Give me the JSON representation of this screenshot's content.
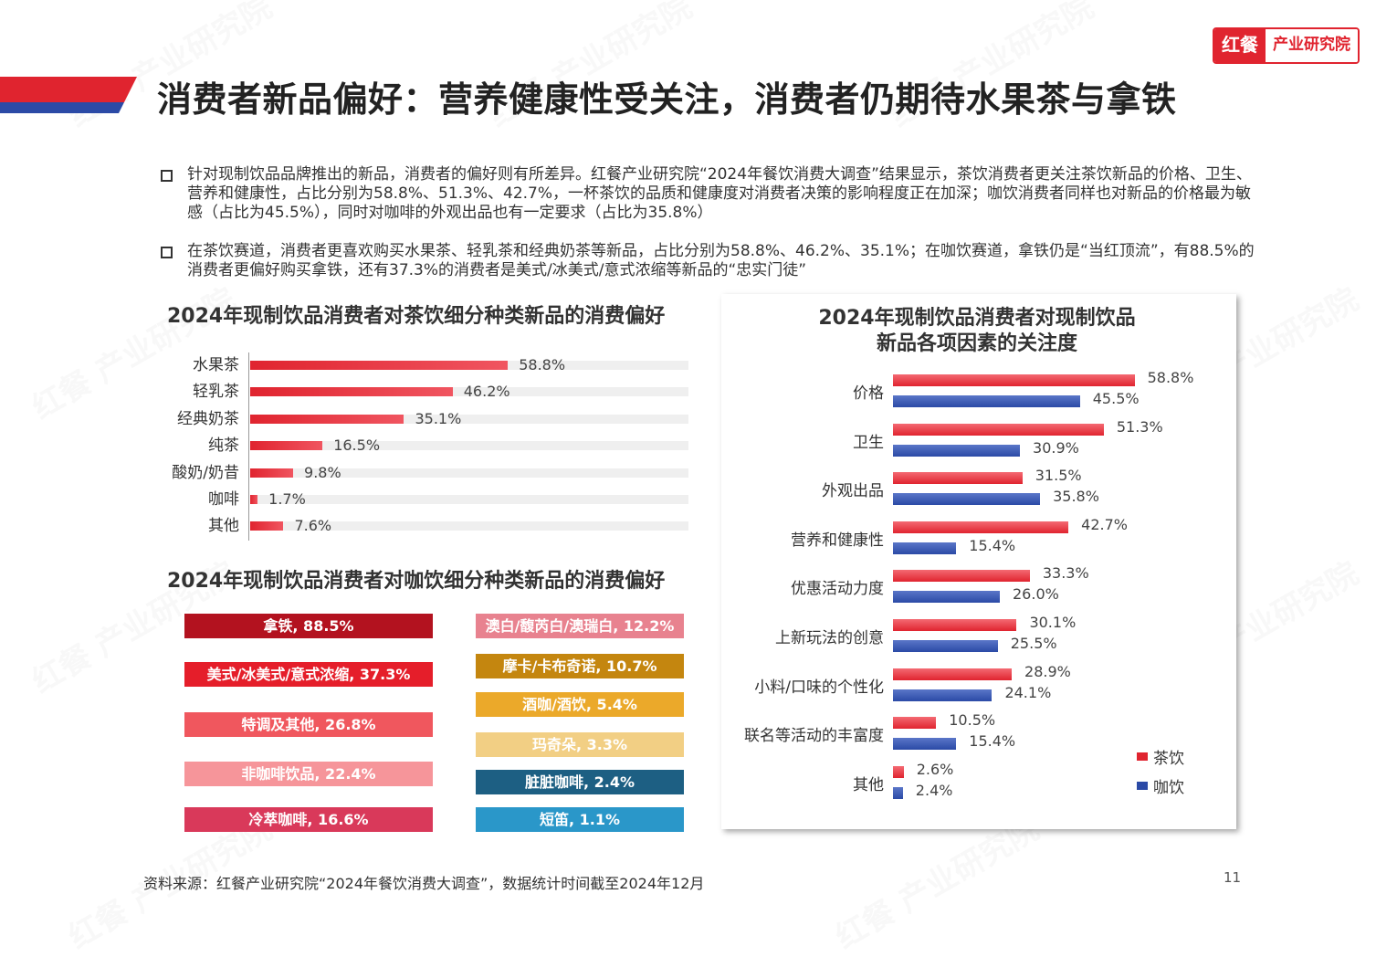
{
  "header": {
    "title": "消费者新品偏好：营养健康性受关注，消费者仍期待水果茶与拿铁",
    "logo_mark": "红餐",
    "logo_text": "产业研究院"
  },
  "bullets": [
    "针对现制饮品品牌推出的新品，消费者的偏好则有所差异。红餐产业研究院“2024年餐饮消费大调查”结果显示，茶饮消费者更关注茶饮新品的价格、卫生、营养和健康性，占比分别为58.8%、51.3%、42.7%，一杯茶饮的品质和健康度对消费者决策的影响程度正在加深；咖饮消费者同样也对新品的价格最为敏感（占比为45.5%），同时对咖啡的外观出品也有一定要求（占比为35.8%）",
    "在茶饮赛道，消费者更喜欢购买水果茶、轻乳茶和经典奶茶等新品，占比分别为58.8%、46.2%、35.1%；在咖饮赛道，拿铁仍是“当红顶流”，有88.5%的消费者更偏好购买拿铁，还有37.3%的消费者是美式/冰美式/意式浓缩等新品的“忠实门徒”"
  ],
  "chart_data": [
    {
      "type": "bar",
      "orientation": "horizontal",
      "title": "2024年现制饮品消费者对茶饮细分种类新品的消费偏好",
      "categories": [
        "水果茶",
        "轻乳茶",
        "经典奶茶",
        "纯茶",
        "酸奶/奶昔",
        "咖啡",
        "其他"
      ],
      "values": [
        58.8,
        46.2,
        35.1,
        16.5,
        9.8,
        1.7,
        7.6
      ],
      "value_labels": [
        "58.8%",
        "46.2%",
        "35.1%",
        "16.5%",
        "9.8%",
        "1.7%",
        "7.6%"
      ],
      "xlim": [
        0,
        100
      ],
      "color": "#e0242f"
    },
    {
      "type": "table",
      "title": "2024年现制饮品消费者对咖饮细分种类新品的消费偏好",
      "items": [
        {
          "label": "拿铁, 88.5%",
          "value": 88.5,
          "color": "#b3121f"
        },
        {
          "label": "美式/冰美式/意式浓缩, 37.3%",
          "value": 37.3,
          "color": "#e51e2a"
        },
        {
          "label": "特调及其他, 26.8%",
          "value": 26.8,
          "color": "#f0575e"
        },
        {
          "label": "非咖啡饮品, 22.4%",
          "value": 22.4,
          "color": "#f6959a"
        },
        {
          "label": "冷萃咖啡, 16.6%",
          "value": 16.6,
          "color": "#d9395a"
        },
        {
          "label": "澳白/馥芮白/澳瑞白, 12.2%",
          "value": 12.2,
          "color": "#e8828f"
        },
        {
          "label": "摩卡/卡布奇诺, 10.7%",
          "value": 10.7,
          "color": "#c4860f"
        },
        {
          "label": "酒咖/酒饮, 5.4%",
          "value": 5.4,
          "color": "#eba92a"
        },
        {
          "label": "玛奇朵, 3.3%",
          "value": 3.3,
          "color": "#f2cf84"
        },
        {
          "label": "脏脏咖啡, 2.4%",
          "value": 2.4,
          "color": "#1d5f83"
        },
        {
          "label": "短笛, 1.1%",
          "value": 1.1,
          "color": "#2a97c9"
        }
      ]
    },
    {
      "type": "bar",
      "orientation": "horizontal",
      "title": "2024年现制饮品消费者对现制饮品\n新品各项因素的关注度",
      "title_line1": "2024年现制饮品消费者对现制饮品",
      "title_line2": "新品各项因素的关注度",
      "categories": [
        "价格",
        "卫生",
        "外观出品",
        "营养和健康性",
        "优惠活动力度",
        "上新玩法的创意",
        "小料/口味的个性化",
        "联名等活动的丰富度",
        "其他"
      ],
      "series": [
        {
          "name": "茶饮",
          "color": "#e0242f",
          "values": [
            58.8,
            51.3,
            31.5,
            42.7,
            33.3,
            30.1,
            28.9,
            10.5,
            2.6
          ],
          "labels": [
            "58.8%",
            "51.3%",
            "31.5%",
            "42.7%",
            "33.3%",
            "30.1%",
            "28.9%",
            "10.5%",
            "2.6%"
          ]
        },
        {
          "name": "咖饮",
          "color": "#2b4aa6",
          "values": [
            45.5,
            30.9,
            35.8,
            15.4,
            26.0,
            25.5,
            24.1,
            15.4,
            2.4
          ],
          "labels": [
            "45.5%",
            "30.9%",
            "35.8%",
            "15.4%",
            "26.0%",
            "25.5%",
            "24.1%",
            "15.4%",
            "2.4%"
          ]
        }
      ],
      "xlim": [
        0,
        100
      ],
      "legend": "bottom-right"
    }
  ],
  "footer": {
    "source": "资料来源：红餐产业研究院“2024年餐饮消费大调查”，数据统计时间截至2024年12月",
    "page": "11"
  },
  "colors": {
    "brand_red": "#e0242f",
    "brand_blue": "#2b4aa6"
  }
}
